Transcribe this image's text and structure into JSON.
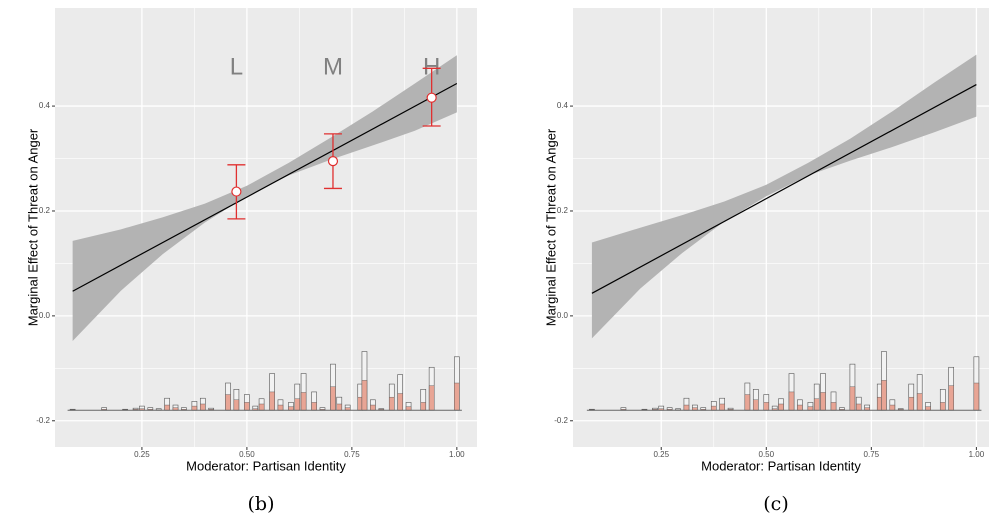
{
  "chart_data": [
    {
      "type": "line",
      "caption": "(b)",
      "x_label": "Moderator: Partisan Identity",
      "y_label": "Marginal Effect of Threat on Anger",
      "xlim": [
        0.043,
        1.048
      ],
      "ylim": [
        -0.25,
        0.587
      ],
      "xticks": [
        {
          "value": 0.25,
          "label": "0.25"
        },
        {
          "value": 0.5,
          "label": "0.50"
        },
        {
          "value": 0.75,
          "label": "0.75"
        },
        {
          "value": 1,
          "label": "1.00"
        }
      ],
      "yticks": [
        {
          "value": -0.2,
          "label": "-0.2"
        },
        {
          "value": 0,
          "label": "0.0"
        },
        {
          "value": 0.2,
          "label": "0.2"
        },
        {
          "value": 0.4,
          "label": "0.4"
        }
      ],
      "grid": true,
      "x": [
        0.085,
        1.0
      ],
      "values": [
        0.047,
        0.443
      ],
      "band": {
        "x": [
          0.085,
          0.2,
          0.3,
          0.4,
          0.5,
          0.6,
          0.7,
          0.8,
          0.9,
          1.0
        ],
        "lower": [
          -0.048,
          0.048,
          0.118,
          0.178,
          0.228,
          0.268,
          0.298,
          0.325,
          0.353,
          0.388
        ],
        "upper": [
          0.143,
          0.165,
          0.188,
          0.214,
          0.248,
          0.292,
          0.34,
          0.39,
          0.443,
          0.497
        ]
      },
      "points": {
        "labels": [
          "L",
          "M",
          "H"
        ],
        "x": [
          0.475,
          0.705,
          0.94
        ],
        "values": [
          0.237,
          0.295,
          0.416
        ],
        "lower": [
          0.185,
          0.243,
          0.362
        ],
        "upper": [
          0.288,
          0.347,
          0.472
        ]
      },
      "hist": {
        "baseline": -0.18,
        "x": [
          0.085,
          0.16,
          0.21,
          0.235,
          0.25,
          0.27,
          0.29,
          0.31,
          0.33,
          0.35,
          0.375,
          0.395,
          0.415,
          0.455,
          0.475,
          0.5,
          0.52,
          0.535,
          0.56,
          0.58,
          0.605,
          0.62,
          0.635,
          0.66,
          0.68,
          0.705,
          0.72,
          0.74,
          0.77,
          0.78,
          0.8,
          0.82,
          0.845,
          0.865,
          0.885,
          0.92,
          0.94,
          1.0
        ],
        "total": [
          -0.178,
          -0.175,
          -0.178,
          -0.176,
          -0.172,
          -0.175,
          -0.177,
          -0.157,
          -0.17,
          -0.175,
          -0.163,
          -0.157,
          -0.176,
          -0.128,
          -0.14,
          -0.15,
          -0.172,
          -0.158,
          -0.11,
          -0.16,
          -0.165,
          -0.13,
          -0.11,
          -0.145,
          -0.175,
          -0.092,
          -0.155,
          -0.17,
          -0.13,
          -0.068,
          -0.16,
          -0.177,
          -0.13,
          -0.112,
          -0.165,
          -0.14,
          -0.098,
          -0.078
        ],
        "treated": [
          -0.179,
          -0.178,
          -0.179,
          -0.178,
          -0.177,
          -0.178,
          -0.179,
          -0.17,
          -0.175,
          -0.178,
          -0.172,
          -0.168,
          -0.178,
          -0.15,
          -0.16,
          -0.165,
          -0.177,
          -0.168,
          -0.145,
          -0.17,
          -0.173,
          -0.158,
          -0.146,
          -0.165,
          -0.178,
          -0.135,
          -0.168,
          -0.175,
          -0.155,
          -0.123,
          -0.17,
          -0.178,
          -0.155,
          -0.148,
          -0.173,
          -0.165,
          -0.133,
          -0.128
        ]
      }
    },
    {
      "type": "line",
      "caption": "(c)",
      "x_label": "Moderator: Partisan Identity",
      "y_label": "Marginal Effect of Threat on Anger",
      "xlim": [
        0.04,
        1.03
      ],
      "ylim": [
        -0.25,
        0.587
      ],
      "xticks": [
        {
          "value": 0.25,
          "label": "0.25"
        },
        {
          "value": 0.5,
          "label": "0.50"
        },
        {
          "value": 0.75,
          "label": "0.75"
        },
        {
          "value": 1,
          "label": "1.00"
        }
      ],
      "yticks": [
        {
          "value": -0.2,
          "label": "-0.2"
        },
        {
          "value": 0,
          "label": "0.0"
        },
        {
          "value": 0.2,
          "label": "0.2"
        },
        {
          "value": 0.4,
          "label": "0.4"
        }
      ],
      "grid": true,
      "x": [
        0.085,
        1.0
      ],
      "values": [
        0.043,
        0.441
      ],
      "band": {
        "x": [
          0.085,
          0.2,
          0.3,
          0.4,
          0.5,
          0.6,
          0.7,
          0.8,
          0.9,
          1.0
        ],
        "lower": [
          -0.043,
          0.052,
          0.12,
          0.18,
          0.228,
          0.268,
          0.296,
          0.322,
          0.35,
          0.38
        ],
        "upper": [
          0.14,
          0.168,
          0.192,
          0.218,
          0.25,
          0.292,
          0.338,
          0.39,
          0.445,
          0.498
        ]
      },
      "hist": {
        "baseline": -0.18,
        "x": [
          0.085,
          0.16,
          0.21,
          0.235,
          0.25,
          0.27,
          0.29,
          0.31,
          0.33,
          0.35,
          0.375,
          0.395,
          0.415,
          0.455,
          0.475,
          0.5,
          0.52,
          0.535,
          0.56,
          0.58,
          0.605,
          0.62,
          0.635,
          0.66,
          0.68,
          0.705,
          0.72,
          0.74,
          0.77,
          0.78,
          0.8,
          0.82,
          0.845,
          0.865,
          0.885,
          0.92,
          0.94,
          1.0
        ],
        "total": [
          -0.178,
          -0.175,
          -0.178,
          -0.176,
          -0.172,
          -0.175,
          -0.177,
          -0.157,
          -0.17,
          -0.175,
          -0.163,
          -0.157,
          -0.176,
          -0.128,
          -0.14,
          -0.15,
          -0.172,
          -0.158,
          -0.11,
          -0.16,
          -0.165,
          -0.13,
          -0.11,
          -0.145,
          -0.175,
          -0.092,
          -0.155,
          -0.17,
          -0.13,
          -0.068,
          -0.16,
          -0.177,
          -0.13,
          -0.112,
          -0.165,
          -0.14,
          -0.098,
          -0.078
        ],
        "treated": [
          -0.179,
          -0.178,
          -0.179,
          -0.178,
          -0.177,
          -0.178,
          -0.179,
          -0.17,
          -0.175,
          -0.178,
          -0.172,
          -0.168,
          -0.178,
          -0.15,
          -0.16,
          -0.165,
          -0.177,
          -0.168,
          -0.145,
          -0.17,
          -0.173,
          -0.158,
          -0.146,
          -0.165,
          -0.178,
          -0.135,
          -0.168,
          -0.175,
          -0.155,
          -0.123,
          -0.17,
          -0.178,
          -0.155,
          -0.148,
          -0.173,
          -0.165,
          -0.133,
          -0.128
        ]
      }
    }
  ]
}
